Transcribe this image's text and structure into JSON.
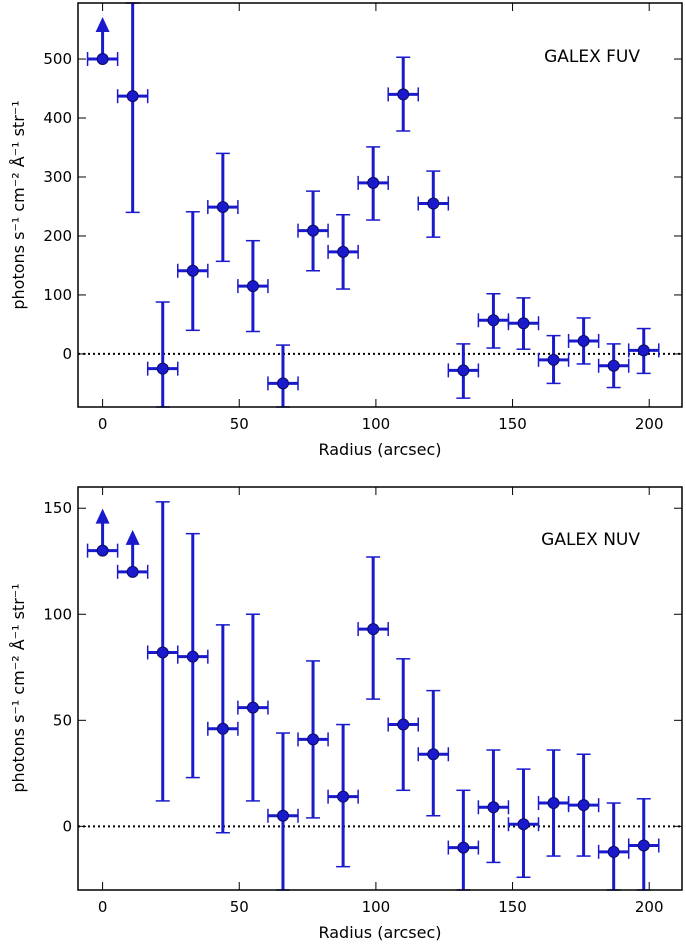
{
  "chart_data": [
    {
      "type": "scatter",
      "title": "GALEX FUV",
      "xlabel": "Radius (arcsec)",
      "ylabel": "photons s⁻¹ cm⁻² Å⁻¹ str⁻¹",
      "xlim": [
        -9,
        212
      ],
      "ylim": [
        -90,
        595
      ],
      "xticks": [
        0,
        50,
        100,
        150,
        200
      ],
      "yticks": [
        0,
        100,
        200,
        300,
        400,
        500
      ],
      "x_error": 5.5,
      "color": "#1a1acc",
      "zero_line": true,
      "points": [
        {
          "x": 0,
          "y": 500,
          "lo": null,
          "hi": null,
          "lower_limit": true
        },
        {
          "x": 11,
          "y": 437,
          "lo": 240,
          "hi": 595
        },
        {
          "x": 22,
          "y": -25,
          "lo": -90,
          "hi": 88
        },
        {
          "x": 33,
          "y": 141,
          "lo": 40,
          "hi": 241
        },
        {
          "x": 44,
          "y": 249,
          "lo": 157,
          "hi": 340
        },
        {
          "x": 55,
          "y": 115,
          "lo": 38,
          "hi": 192
        },
        {
          "x": 66,
          "y": -50,
          "lo": -90,
          "hi": 15
        },
        {
          "x": 77,
          "y": 209,
          "lo": 141,
          "hi": 276
        },
        {
          "x": 88,
          "y": 173,
          "lo": 110,
          "hi": 236
        },
        {
          "x": 99,
          "y": 290,
          "lo": 227,
          "hi": 351
        },
        {
          "x": 110,
          "y": 440,
          "lo": 378,
          "hi": 503
        },
        {
          "x": 121,
          "y": 255,
          "lo": 198,
          "hi": 310
        },
        {
          "x": 132,
          "y": -28,
          "lo": -75,
          "hi": 17
        },
        {
          "x": 143,
          "y": 57,
          "lo": 10,
          "hi": 102
        },
        {
          "x": 154,
          "y": 52,
          "lo": 8,
          "hi": 95
        },
        {
          "x": 165,
          "y": -10,
          "lo": -50,
          "hi": 31
        },
        {
          "x": 176,
          "y": 22,
          "lo": -17,
          "hi": 61
        },
        {
          "x": 187,
          "y": -20,
          "lo": -57,
          "hi": 17
        },
        {
          "x": 198,
          "y": 6,
          "lo": -33,
          "hi": 43
        }
      ]
    },
    {
      "type": "scatter",
      "title": "GALEX NUV",
      "xlabel": "Radius (arcsec)",
      "ylabel": "photons s⁻¹ cm⁻² Å⁻¹ str⁻¹",
      "xlim": [
        -9,
        212
      ],
      "ylim": [
        -30,
        160
      ],
      "xticks": [
        0,
        50,
        100,
        150,
        200
      ],
      "yticks": [
        0,
        50,
        100,
        150
      ],
      "x_error": 5.5,
      "color": "#1a1acc",
      "zero_line": true,
      "points": [
        {
          "x": 0,
          "y": 130,
          "lo": null,
          "hi": null,
          "lower_limit": true
        },
        {
          "x": 11,
          "y": 120,
          "lo": null,
          "hi": null,
          "lower_limit": true
        },
        {
          "x": 22,
          "y": 82,
          "lo": 12,
          "hi": 153
        },
        {
          "x": 33,
          "y": 80,
          "lo": 23,
          "hi": 138
        },
        {
          "x": 44,
          "y": 46,
          "lo": -3,
          "hi": 95
        },
        {
          "x": 55,
          "y": 56,
          "lo": 12,
          "hi": 100
        },
        {
          "x": 66,
          "y": 5,
          "lo": -30,
          "hi": 44
        },
        {
          "x": 77,
          "y": 41,
          "lo": 4,
          "hi": 78
        },
        {
          "x": 88,
          "y": 14,
          "lo": -19,
          "hi": 48
        },
        {
          "x": 99,
          "y": 93,
          "lo": 60,
          "hi": 127
        },
        {
          "x": 110,
          "y": 48,
          "lo": 17,
          "hi": 79
        },
        {
          "x": 121,
          "y": 34,
          "lo": 5,
          "hi": 64
        },
        {
          "x": 132,
          "y": -10,
          "lo": -30,
          "hi": 17
        },
        {
          "x": 143,
          "y": 9,
          "lo": -17,
          "hi": 36
        },
        {
          "x": 154,
          "y": 1,
          "lo": -24,
          "hi": 27
        },
        {
          "x": 165,
          "y": 11,
          "lo": -14,
          "hi": 36
        },
        {
          "x": 176,
          "y": 10,
          "lo": -14,
          "hi": 34
        },
        {
          "x": 187,
          "y": -12,
          "lo": -30,
          "hi": 11
        },
        {
          "x": 198,
          "y": -9,
          "lo": -30,
          "hi": 13
        }
      ]
    }
  ]
}
